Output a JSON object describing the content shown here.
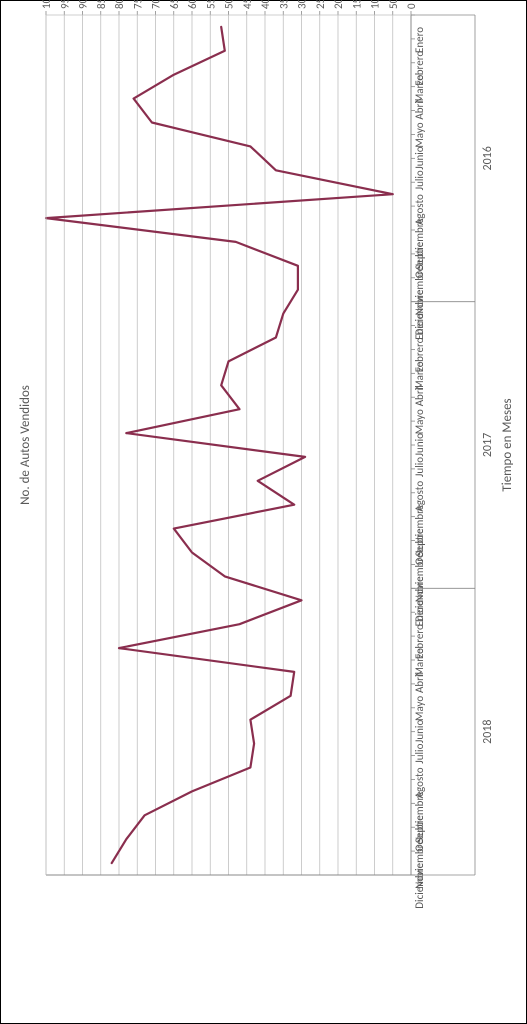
{
  "chart": {
    "type": "line",
    "x_label": "No. de Autos Vendidos",
    "y_label": "Tiempo en Meses",
    "label_fontsize": 13,
    "tick_fontsize": 11,
    "line_color": "#8a2e4e",
    "line_width": 2.2,
    "grid_color": "#bfbfbf",
    "border_color": "#000000",
    "background_color": "#ffffff",
    "axis_color": "#888888",
    "x_ticks": [
      0,
      50,
      100,
      150,
      200,
      250,
      300,
      350,
      400,
      450,
      500,
      550,
      600,
      650,
      700,
      750,
      800,
      850,
      900,
      950,
      1000
    ],
    "xlim": [
      0,
      1000
    ],
    "years": [
      "2016",
      "2017",
      "2018"
    ],
    "months": [
      "Enero",
      "Febrero",
      "Marzo",
      "Abril",
      "Mayo",
      "Junio",
      "Julio",
      "Agosto",
      "Septiembre",
      "Octubre",
      "Noviembre",
      "Diciembre"
    ],
    "values_2016": [
      520,
      510,
      650,
      760,
      710,
      440,
      370,
      50,
      1000,
      480,
      310,
      310
    ],
    "values_2017": [
      350,
      370,
      500,
      520,
      470,
      780,
      290,
      420,
      320,
      650,
      600,
      510
    ],
    "values_2018": [
      300,
      470,
      800,
      320,
      330,
      440,
      430,
      440,
      600,
      730,
      780,
      820
    ]
  }
}
